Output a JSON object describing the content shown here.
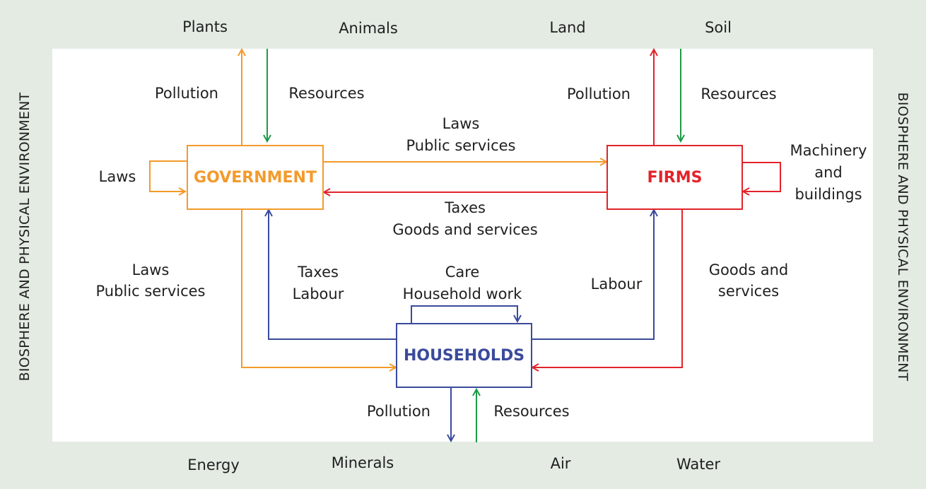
{
  "colors": {
    "background": "#e3ebe3",
    "panel": "#ffffff",
    "government": "#f39a2b",
    "firms": "#e3232a",
    "households": "#3a4a9c",
    "resources": "#1e9a48",
    "text": "#1f1f1f"
  },
  "side_labels": {
    "left": "BIOSPHERE AND PHYSICAL ENVIRONMENT",
    "right": "BIOSPHERE AND PHYSICAL ENVIRONMENT"
  },
  "environment": {
    "plants": "Plants",
    "animals": "Animals",
    "land": "Land",
    "soil": "Soil",
    "energy": "Energy",
    "minerals": "Minerals",
    "air": "Air",
    "water": "Water"
  },
  "nodes": {
    "government": "GOVERNMENT",
    "firms": "FIRMS",
    "households": "HOUSEHOLDS"
  },
  "flow_labels": {
    "gov_pollution": "Pollution",
    "gov_resources": "Resources",
    "firms_pollution": "Pollution",
    "firms_resources": "Resources",
    "hh_pollution": "Pollution",
    "hh_resources": "Resources",
    "gov_self_laws": "Laws",
    "gov_to_firms_1": "Laws",
    "gov_to_firms_2": "Public services",
    "firms_to_gov_1": "Taxes",
    "firms_to_gov_2": "Goods and services",
    "firms_self_1": "Machinery",
    "firms_self_2": "and",
    "firms_self_3": "buildings",
    "gov_to_hh_1": "Laws",
    "gov_to_hh_2": "Public services",
    "hh_to_gov_1": "Taxes",
    "hh_to_gov_2": "Labour",
    "hh_self_1": "Care",
    "hh_self_2": "Household work",
    "hh_to_firms": "Labour",
    "firms_to_hh_1": "Goods and",
    "firms_to_hh_2": "services"
  }
}
